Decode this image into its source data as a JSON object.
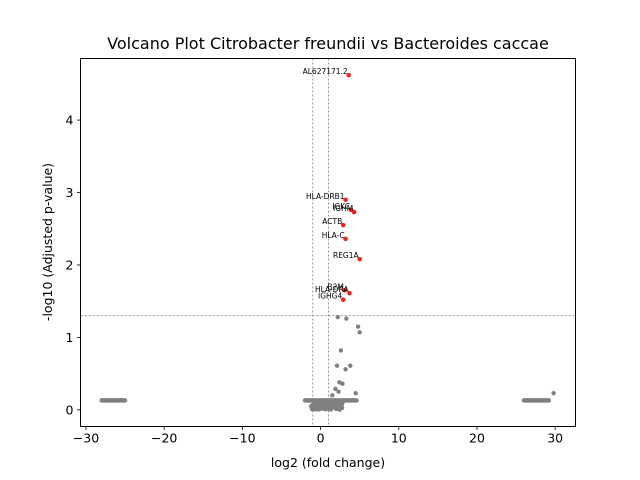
{
  "chart_data": {
    "type": "scatter",
    "title": "Volcano Plot Citrobacter freundii vs Bacteroides caccae",
    "xlabel": "log2 (fold change)",
    "ylabel": "-log10 (Adjusted p-value)",
    "xlim": [
      -30.7,
      32.6
    ],
    "ylim": [
      -0.23,
      4.85
    ],
    "xticks": [
      -30,
      -20,
      -10,
      0,
      10,
      20,
      30
    ],
    "yticks": [
      0,
      1,
      2,
      3,
      4
    ],
    "grid": false,
    "thresholds": {
      "log2fc": [
        -1,
        1
      ],
      "neglog10p": 1.3
    },
    "colors": {
      "significant": "#e8281e",
      "nonsignificant": "#808080",
      "threshold_line": "#808080"
    },
    "significant": [
      {
        "label": "AL627171.2",
        "x": 3.6,
        "y": 4.62
      },
      {
        "label": "HLA-DRB1",
        "x": 3.2,
        "y": 2.9
      },
      {
        "label": "IGKC",
        "x": 3.9,
        "y": 2.76
      },
      {
        "label": "IGHM",
        "x": 4.3,
        "y": 2.73
      },
      {
        "label": "ACTB",
        "x": 2.9,
        "y": 2.55
      },
      {
        "label": "HLA-C",
        "x": 3.2,
        "y": 2.36
      },
      {
        "label": "REG1A",
        "x": 5.0,
        "y": 2.08
      },
      {
        "label": "B2M",
        "x": 3.1,
        "y": 1.65
      },
      {
        "label": "HLA-DRA",
        "x": 3.7,
        "y": 1.61
      },
      {
        "label": "IGHG4",
        "x": 2.9,
        "y": 1.52
      }
    ],
    "nonsignificant": [
      {
        "x": 2.2,
        "y": 1.28
      },
      {
        "x": 3.3,
        "y": 1.26
      },
      {
        "x": 4.8,
        "y": 1.15
      },
      {
        "x": 5.0,
        "y": 1.07
      },
      {
        "x": 2.6,
        "y": 0.82
      },
      {
        "x": 2.1,
        "y": 0.61
      },
      {
        "x": 3.8,
        "y": 0.61
      },
      {
        "x": 3.2,
        "y": 0.56
      },
      {
        "x": 2.4,
        "y": 0.38
      },
      {
        "x": 2.8,
        "y": 0.36
      },
      {
        "x": 1.9,
        "y": 0.29
      },
      {
        "x": 2.3,
        "y": 0.25
      },
      {
        "x": 4.5,
        "y": 0.23
      },
      {
        "x": 29.8,
        "y": 0.23
      },
      {
        "x": 1.5,
        "y": 0.2
      }
    ],
    "clusters": [
      {
        "x": [
          -28,
          -25
        ],
        "y": 0.13,
        "count": 40
      },
      {
        "x": [
          26,
          29.2
        ],
        "y": 0.13,
        "count": 40
      },
      {
        "x": [
          -2,
          4.6
        ],
        "y": 0.13,
        "count": 70
      },
      {
        "x": [
          -1.2,
          2.8
        ],
        "y": [
          0.0,
          0.1
        ],
        "count": 90
      }
    ]
  }
}
